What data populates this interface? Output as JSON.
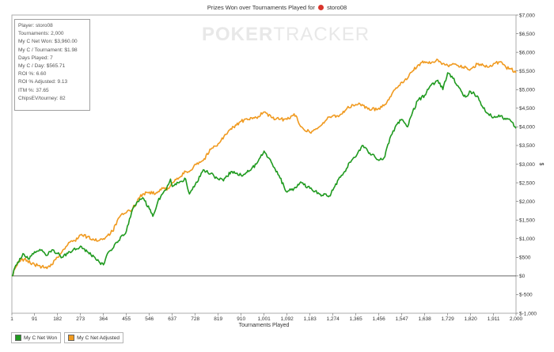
{
  "header": {
    "title_prefix": "Prizes Won over Tournaments Played for",
    "player": "storo08"
  },
  "watermark": {
    "bold": "POKER",
    "light": "TRACKER"
  },
  "stats": [
    "Player: storo08",
    "Tournaments: 2,000",
    "My C Net Won: $3,960.00",
    "My C / Tournament: $1.98",
    "Days Played: 7",
    "My C / Day: $565.71",
    "ROI %: 6.60",
    "ROI % Adjusted: 9.13",
    "ITM %: 37.65",
    "ChipsEV/tourney: 82"
  ],
  "chart_data": {
    "type": "line",
    "title": "Prizes Won over Tournaments Played for storo08",
    "xlabel": "Tournaments Played",
    "ylabel": "$",
    "xlim": [
      1,
      2000
    ],
    "ylim": [
      -1000,
      7000
    ],
    "x_ticks": [
      "1",
      "91",
      "182",
      "273",
      "364",
      "455",
      "546",
      "637",
      "728",
      "819",
      "910",
      "1,001",
      "1,092",
      "1,183",
      "1,274",
      "1,365",
      "1,456",
      "1,547",
      "1,638",
      "1,729",
      "1,820",
      "1,911",
      "2,000"
    ],
    "y_ticks": [
      "$-1,000",
      "$-500",
      "$0",
      "$500",
      "$1,000",
      "$1,500",
      "$2,000",
      "$2,500",
      "$3,000",
      "$3,500",
      "$4,000",
      "$4,500",
      "$5,000",
      "$5,500",
      "$6,000",
      "$6,500",
      "$7,000"
    ],
    "legend_position": "bottom-left",
    "series": [
      {
        "name": "My C Net Won",
        "color": "#1f9a1f",
        "points": [
          [
            1,
            0
          ],
          [
            20,
            300
          ],
          [
            45,
            600
          ],
          [
            70,
            450
          ],
          [
            91,
            650
          ],
          [
            120,
            700
          ],
          [
            140,
            550
          ],
          [
            160,
            700
          ],
          [
            182,
            600
          ],
          [
            200,
            500
          ],
          [
            230,
            650
          ],
          [
            273,
            800
          ],
          [
            300,
            650
          ],
          [
            330,
            500
          ],
          [
            350,
            350
          ],
          [
            364,
            300
          ],
          [
            380,
            600
          ],
          [
            420,
            900
          ],
          [
            455,
            1200
          ],
          [
            480,
            1800
          ],
          [
            500,
            2000
          ],
          [
            520,
            2100
          ],
          [
            546,
            1800
          ],
          [
            560,
            1600
          ],
          [
            580,
            2000
          ],
          [
            610,
            2300
          ],
          [
            630,
            2600
          ],
          [
            637,
            2400
          ],
          [
            660,
            2500
          ],
          [
            690,
            2600
          ],
          [
            705,
            2200
          ],
          [
            728,
            2450
          ],
          [
            760,
            2850
          ],
          [
            790,
            2750
          ],
          [
            819,
            2600
          ],
          [
            840,
            2550
          ],
          [
            870,
            2800
          ],
          [
            890,
            2750
          ],
          [
            910,
            2700
          ],
          [
            940,
            2800
          ],
          [
            970,
            3000
          ],
          [
            990,
            3250
          ],
          [
            1001,
            3350
          ],
          [
            1030,
            3050
          ],
          [
            1060,
            2700
          ],
          [
            1080,
            2400
          ],
          [
            1092,
            2250
          ],
          [
            1120,
            2350
          ],
          [
            1150,
            2500
          ],
          [
            1183,
            2350
          ],
          [
            1220,
            2200
          ],
          [
            1250,
            2150
          ],
          [
            1260,
            2150
          ],
          [
            1274,
            2300
          ],
          [
            1300,
            2650
          ],
          [
            1320,
            2800
          ],
          [
            1340,
            3050
          ],
          [
            1365,
            3200
          ],
          [
            1390,
            3500
          ],
          [
            1420,
            3300
          ],
          [
            1440,
            3200
          ],
          [
            1456,
            3100
          ],
          [
            1480,
            3200
          ],
          [
            1500,
            3700
          ],
          [
            1525,
            4050
          ],
          [
            1547,
            4200
          ],
          [
            1570,
            4000
          ],
          [
            1590,
            4400
          ],
          [
            1610,
            4700
          ],
          [
            1638,
            4850
          ],
          [
            1660,
            5100
          ],
          [
            1690,
            5250
          ],
          [
            1710,
            5000
          ],
          [
            1729,
            5450
          ],
          [
            1750,
            5300
          ],
          [
            1770,
            5100
          ],
          [
            1790,
            4850
          ],
          [
            1800,
            4800
          ],
          [
            1820,
            4950
          ],
          [
            1850,
            4800
          ],
          [
            1870,
            4500
          ],
          [
            1890,
            4350
          ],
          [
            1911,
            4250
          ],
          [
            1940,
            4300
          ],
          [
            1960,
            4200
          ],
          [
            1980,
            4150
          ],
          [
            2000,
            3960
          ]
        ]
      },
      {
        "name": "My C Net Adjusted",
        "color": "#f09a20",
        "points": [
          [
            1,
            0
          ],
          [
            30,
            400
          ],
          [
            50,
            450
          ],
          [
            91,
            300
          ],
          [
            120,
            250
          ],
          [
            140,
            200
          ],
          [
            160,
            300
          ],
          [
            182,
            500
          ],
          [
            200,
            650
          ],
          [
            230,
            900
          ],
          [
            250,
            950
          ],
          [
            273,
            1100
          ],
          [
            300,
            1050
          ],
          [
            330,
            950
          ],
          [
            364,
            1000
          ],
          [
            400,
            1200
          ],
          [
            430,
            1600
          ],
          [
            455,
            1700
          ],
          [
            480,
            1800
          ],
          [
            500,
            2050
          ],
          [
            520,
            2200
          ],
          [
            546,
            2250
          ],
          [
            570,
            2200
          ],
          [
            600,
            2350
          ],
          [
            620,
            2350
          ],
          [
            637,
            2500
          ],
          [
            660,
            2600
          ],
          [
            690,
            2800
          ],
          [
            705,
            2800
          ],
          [
            728,
            3000
          ],
          [
            760,
            3100
          ],
          [
            790,
            3400
          ],
          [
            819,
            3550
          ],
          [
            850,
            3800
          ],
          [
            880,
            4000
          ],
          [
            910,
            4150
          ],
          [
            940,
            4200
          ],
          [
            970,
            4250
          ],
          [
            1001,
            4400
          ],
          [
            1030,
            4250
          ],
          [
            1060,
            4200
          ],
          [
            1092,
            4200
          ],
          [
            1120,
            4350
          ],
          [
            1150,
            4000
          ],
          [
            1183,
            3850
          ],
          [
            1220,
            4000
          ],
          [
            1250,
            4200
          ],
          [
            1274,
            4300
          ],
          [
            1300,
            4300
          ],
          [
            1330,
            4500
          ],
          [
            1365,
            4600
          ],
          [
            1390,
            4600
          ],
          [
            1420,
            4450
          ],
          [
            1456,
            4500
          ],
          [
            1480,
            4600
          ],
          [
            1500,
            4800
          ],
          [
            1520,
            5000
          ],
          [
            1547,
            5200
          ],
          [
            1570,
            5300
          ],
          [
            1590,
            5500
          ],
          [
            1610,
            5650
          ],
          [
            1638,
            5750
          ],
          [
            1660,
            5700
          ],
          [
            1690,
            5800
          ],
          [
            1710,
            5700
          ],
          [
            1729,
            5650
          ],
          [
            1750,
            5700
          ],
          [
            1770,
            5650
          ],
          [
            1790,
            5600
          ],
          [
            1820,
            5550
          ],
          [
            1850,
            5700
          ],
          [
            1870,
            5650
          ],
          [
            1890,
            5600
          ],
          [
            1911,
            5700
          ],
          [
            1940,
            5750
          ],
          [
            1960,
            5600
          ],
          [
            1980,
            5550
          ],
          [
            2000,
            5450
          ]
        ]
      }
    ]
  }
}
